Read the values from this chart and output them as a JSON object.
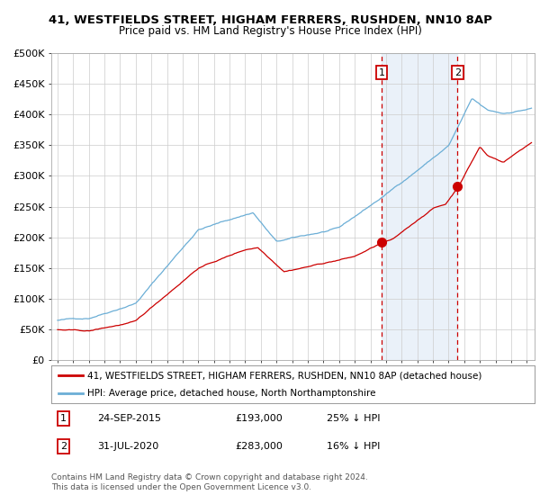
{
  "title": "41, WESTFIELDS STREET, HIGHAM FERRERS, RUSHDEN, NN10 8AP",
  "subtitle": "Price paid vs. HM Land Registry's House Price Index (HPI)",
  "ylim": [
    0,
    500000
  ],
  "yticks": [
    0,
    50000,
    100000,
    150000,
    200000,
    250000,
    300000,
    350000,
    400000,
    450000,
    500000
  ],
  "ytick_labels": [
    "£0",
    "£50K",
    "£100K",
    "£150K",
    "£200K",
    "£250K",
    "£300K",
    "£350K",
    "£400K",
    "£450K",
    "£500K"
  ],
  "hpi_color": "#6baed6",
  "price_color": "#cc0000",
  "point1_date_year": 2015.73,
  "point1_price": 193000,
  "point2_date_year": 2020.58,
  "point2_price": 283000,
  "vline1_x": 2015.73,
  "vline2_x": 2020.58,
  "shade_start": 2015.73,
  "shade_end": 2020.58,
  "legend_line1": "41, WESTFIELDS STREET, HIGHAM FERRERS, RUSHDEN, NN10 8AP (detached house)",
  "legend_line2": "HPI: Average price, detached house, North Northamptonshire",
  "table_row1_num": "1",
  "table_row1_date": "24-SEP-2015",
  "table_row1_price": "£193,000",
  "table_row1_hpi": "25% ↓ HPI",
  "table_row2_num": "2",
  "table_row2_date": "31-JUL-2020",
  "table_row2_price": "£283,000",
  "table_row2_hpi": "16% ↓ HPI",
  "footnote_line1": "Contains HM Land Registry data © Crown copyright and database right 2024.",
  "footnote_line2": "This data is licensed under the Open Government Licence v3.0.",
  "grid_color": "#cccccc",
  "shade_color": "#dce9f5",
  "shade_alpha": 0.6,
  "xlim_left": 1994.6,
  "xlim_right": 2025.5
}
